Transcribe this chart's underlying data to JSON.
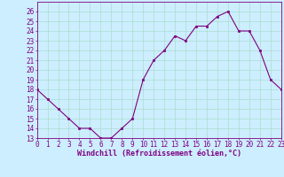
{
  "x": [
    0,
    1,
    2,
    3,
    4,
    5,
    6,
    7,
    8,
    9,
    10,
    11,
    12,
    13,
    14,
    15,
    16,
    17,
    18,
    19,
    20,
    21,
    22,
    23
  ],
  "y": [
    18,
    17,
    16,
    15,
    14,
    14,
    13,
    13,
    14,
    15,
    19,
    21,
    22,
    23.5,
    23,
    24.5,
    24.5,
    25.5,
    26,
    24,
    24,
    22,
    19,
    18
  ],
  "line_color": "#800080",
  "marker_color": "#800080",
  "bg_color": "#cceeff",
  "grid_color": "#aaddcc",
  "xlabel": "Windchill (Refroidissement éolien,°C)",
  "ylim": [
    13,
    27
  ],
  "xlim": [
    0,
    23
  ],
  "yticks": [
    13,
    14,
    15,
    16,
    17,
    18,
    19,
    20,
    21,
    22,
    23,
    24,
    25,
    26
  ],
  "xticks": [
    0,
    1,
    2,
    3,
    4,
    5,
    6,
    7,
    8,
    9,
    10,
    11,
    12,
    13,
    14,
    15,
    16,
    17,
    18,
    19,
    20,
    21,
    22,
    23
  ],
  "tick_color": "#800080",
  "label_color": "#800080",
  "tick_fontsize": 5.5,
  "xlabel_fontsize": 6.0
}
